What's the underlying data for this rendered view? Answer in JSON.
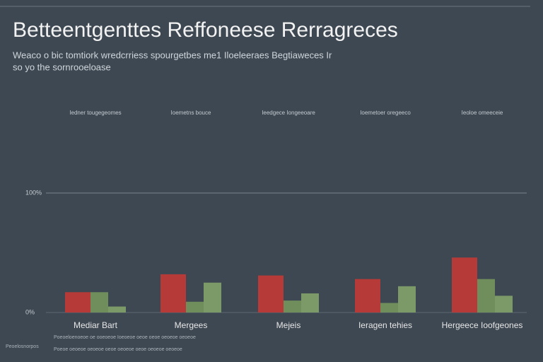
{
  "chart_data": {
    "type": "bar",
    "title": "Betteentgenttes Reffoneese Rerragreces",
    "subtitle": [
      "Weaco o bic tomtiork wredcrriess spourgetbes me1 Iloeleeraes Begtiaweces Ir",
      "so yo the sornrooeloase"
    ],
    "categories": [
      "Mediar Bart",
      "Mergees",
      "Mejeis",
      "Ieragen tehies",
      "Hergeece Ioofgeones"
    ],
    "group_notes": [
      "Iedner tougegeomes",
      "Ioemetns bouce",
      "Ieedgece Iongeeoare",
      "Ioemetoer oregeeco",
      "Ieoloe omeeceie"
    ],
    "series": [
      {
        "color": "#b63a37",
        "values": [
          17,
          32,
          31,
          28,
          46
        ]
      },
      {
        "color": "#6f8e5c",
        "values": [
          17,
          9,
          10,
          8,
          28
        ]
      },
      {
        "color": "#7c9a68",
        "values": [
          5,
          25,
          16,
          22,
          14
        ]
      }
    ],
    "ylim": [
      0,
      100
    ],
    "yticks": [
      {
        "value": 0,
        "label": "0%"
      },
      {
        "value": 100,
        "label": "100%"
      }
    ],
    "grid": true,
    "footnote": [
      "Peoelosnorpos",
      "Poeoeloenoeoe oe ooeoeoe Ioeoeoe oeoe oeoe oeoeoe oeoeoe",
      "Poeoe oeoeoe oeoeoe oeoe oeoeoe oeoe oeoeoe oeoeoe"
    ]
  }
}
